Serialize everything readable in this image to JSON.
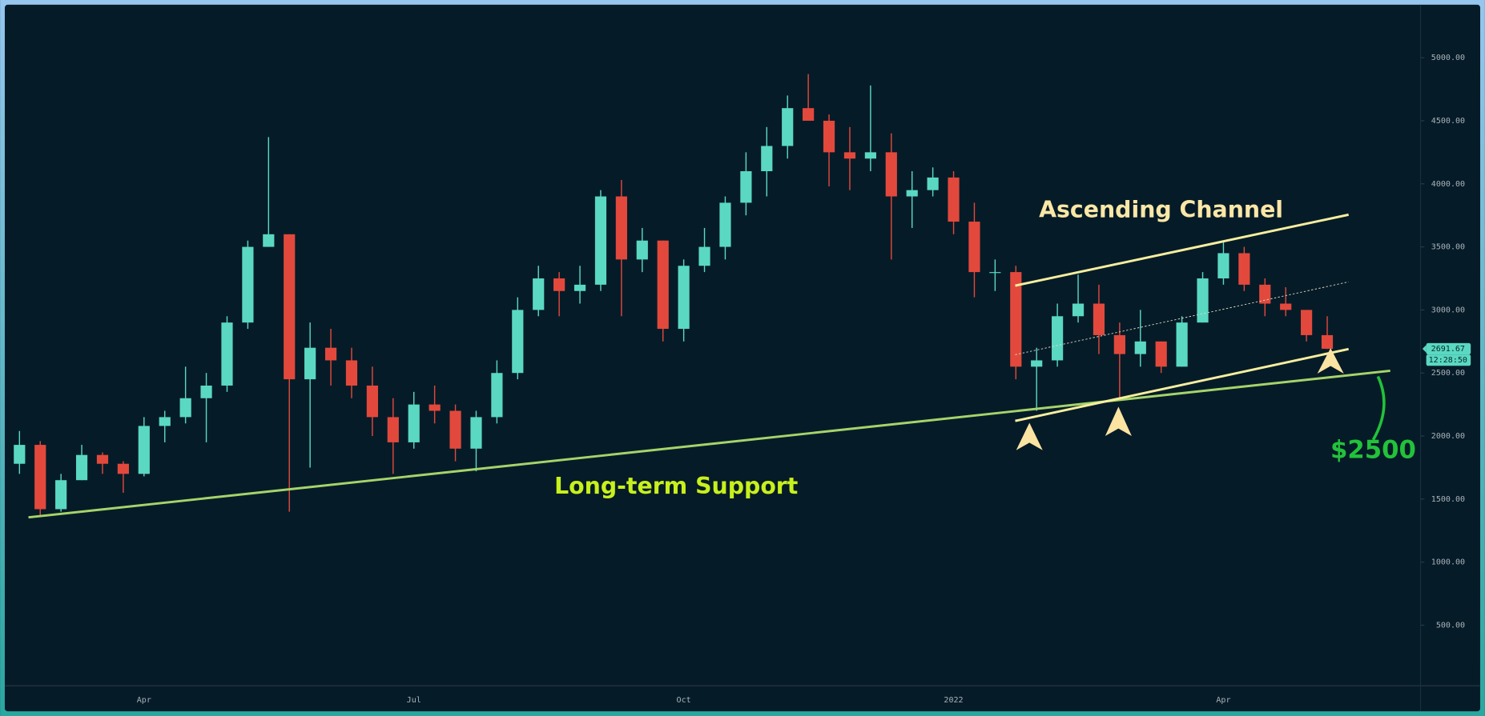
{
  "chart_data": {
    "type": "candlestick",
    "categories": [
      null,
      null,
      null,
      null,
      null,
      null,
      "Apr",
      null,
      null,
      null,
      null,
      null,
      null,
      null,
      null,
      null,
      null,
      null,
      null,
      "Jul",
      null,
      null,
      null,
      null,
      null,
      null,
      null,
      null,
      null,
      null,
      null,
      null,
      "Oct",
      null,
      null,
      null,
      null,
      null,
      null,
      null,
      null,
      null,
      null,
      null,
      null,
      "2022",
      null,
      null,
      null,
      null,
      null,
      null,
      null,
      null,
      null,
      null,
      null,
      null,
      "Apr",
      null,
      null,
      null,
      null,
      null
    ],
    "open": [
      1780,
      1930,
      1420,
      1650,
      1850,
      1780,
      1700,
      2080,
      2150,
      2300,
      2400,
      2900,
      3500,
      3600,
      2450,
      2700,
      2600,
      2400,
      2150,
      1950,
      2250,
      2200,
      1900,
      2150,
      2500,
      3000,
      3250,
      3150,
      3200,
      3900,
      3400,
      3550,
      2850,
      3350,
      3500,
      3850,
      4100,
      4300,
      4600,
      4500,
      4250,
      4200,
      4250,
      3900,
      3950,
      4050,
      3700,
      3300,
      3300,
      2550,
      2600,
      2950,
      3050,
      2800,
      2650,
      2750,
      2550,
      2900,
      3250,
      3450,
      3200,
      3050,
      3000,
      2800
    ],
    "high": [
      2040,
      1960,
      1700,
      1930,
      1870,
      1800,
      2150,
      2200,
      2550,
      2500,
      2950,
      3550,
      4370,
      3600,
      2900,
      2850,
      2700,
      2550,
      2300,
      2350,
      2400,
      2250,
      2200,
      2600,
      3100,
      3350,
      3300,
      3350,
      3950,
      4030,
      3650,
      3550,
      3400,
      3650,
      3900,
      4250,
      4450,
      4700,
      4870,
      4550,
      4450,
      4780,
      4400,
      4100,
      4130,
      4100,
      3850,
      3400,
      3350,
      2700,
      3050,
      3280,
      3200,
      2900,
      3000,
      2750,
      2950,
      3300,
      3550,
      3500,
      3250,
      3180,
      3000,
      2950
    ],
    "low": [
      1700,
      1370,
      1400,
      1650,
      1700,
      1550,
      1680,
      1950,
      2100,
      1950,
      2350,
      2850,
      3500,
      1400,
      1750,
      2400,
      2300,
      2000,
      1700,
      1900,
      2100,
      1800,
      1720,
      2100,
      2450,
      2950,
      2950,
      3050,
      3150,
      2950,
      3300,
      2750,
      2750,
      3300,
      3400,
      3750,
      3900,
      4200,
      4500,
      3980,
      3950,
      4100,
      3400,
      3650,
      3900,
      3600,
      3100,
      3150,
      2450,
      2200,
      2550,
      2900,
      2650,
      2300,
      2550,
      2500,
      2550,
      2900,
      3200,
      3150,
      2950,
      2950,
      2750,
      2690
    ],
    "close": [
      1930,
      1420,
      1650,
      1850,
      1780,
      1700,
      2080,
      2150,
      2300,
      2400,
      2900,
      3500,
      3600,
      2450,
      2700,
      2600,
      2400,
      2150,
      1950,
      2250,
      2200,
      1900,
      2150,
      2500,
      3000,
      3250,
      3150,
      3200,
      3900,
      3400,
      3550,
      2850,
      3350,
      3500,
      3850,
      4100,
      4300,
      4600,
      4500,
      4250,
      4200,
      4250,
      3900,
      3950,
      4050,
      3700,
      3300,
      3300,
      2550,
      2600,
      2950,
      3050,
      2800,
      2650,
      2750,
      2550,
      2900,
      3250,
      3450,
      3200,
      3050,
      3000,
      2800,
      2692
    ],
    "up_color": "#5ad8c2",
    "down_color": "#e2493c",
    "ylim": [
      20,
      5420
    ],
    "yticks": [
      {
        "value": 500,
        "label": "500.00"
      },
      {
        "value": 1000,
        "label": "1000.00"
      },
      {
        "value": 1500,
        "label": "1500.00"
      },
      {
        "value": 2000,
        "label": "2000.00"
      },
      {
        "value": 2500,
        "label": "2500.00"
      },
      {
        "value": 3000,
        "label": "3000.00"
      },
      {
        "value": 3500,
        "label": "3500.00"
      },
      {
        "value": 4000,
        "label": "4000.00"
      },
      {
        "value": 4500,
        "label": "4500.00"
      },
      {
        "value": 5000,
        "label": "5000.00"
      }
    ],
    "annotations": [
      "Ascending Channel",
      "Long-term Support",
      "$2500"
    ],
    "last_price": 2691.67,
    "countdown": "12:28:50"
  }
}
